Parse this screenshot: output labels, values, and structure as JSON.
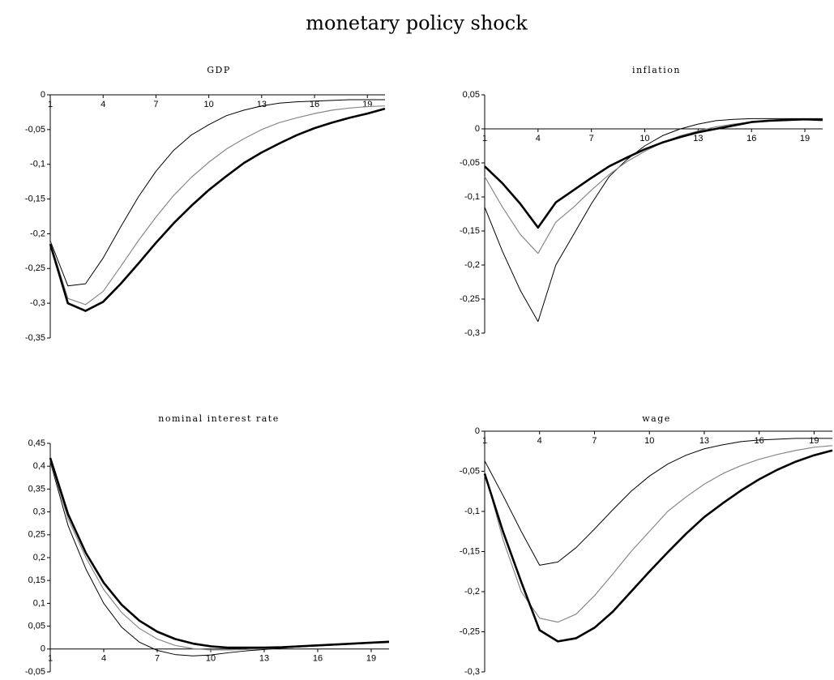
{
  "title": "monetary policy shock",
  "chart_data": [
    {
      "type": "line",
      "title": "GDP",
      "x": [
        1,
        2,
        3,
        4,
        5,
        6,
        7,
        8,
        9,
        10,
        11,
        12,
        13,
        14,
        15,
        16,
        17,
        18,
        19,
        20
      ],
      "xlim": [
        1,
        20
      ],
      "xticks": [
        1,
        4,
        7,
        10,
        13,
        16,
        19
      ],
      "ylim": [
        -0.35,
        0
      ],
      "yticks": [
        0,
        {
          "value": -0.05,
          "label": "-0,05"
        },
        {
          "value": -0.1,
          "label": "-0,1"
        },
        {
          "value": -0.15,
          "label": "-0,15"
        },
        {
          "value": -0.2,
          "label": "-0,2"
        },
        {
          "value": -0.25,
          "label": "-0,25"
        },
        {
          "value": -0.3,
          "label": "-0,3"
        },
        {
          "value": -0.35,
          "label": "-0,35"
        }
      ],
      "series": [
        {
          "color": "#000000",
          "line_width": 1,
          "values": [
            -0.21,
            -0.275,
            -0.272,
            -0.235,
            -0.19,
            -0.147,
            -0.11,
            -0.08,
            -0.058,
            -0.043,
            -0.03,
            -0.022,
            -0.016,
            -0.012,
            -0.01,
            -0.009,
            -0.008,
            -0.007,
            -0.007,
            -0.007
          ]
        },
        {
          "color": "#888888",
          "line_width": 1.2,
          "values": [
            -0.212,
            -0.293,
            -0.302,
            -0.283,
            -0.247,
            -0.21,
            -0.176,
            -0.145,
            -0.119,
            -0.097,
            -0.078,
            -0.063,
            -0.05,
            -0.04,
            -0.033,
            -0.027,
            -0.022,
            -0.019,
            -0.017,
            -0.016
          ]
        },
        {
          "color": "#000000",
          "line_width": 2.6,
          "values": [
            -0.215,
            -0.3,
            -0.311,
            -0.298,
            -0.272,
            -0.243,
            -0.213,
            -0.185,
            -0.16,
            -0.137,
            -0.117,
            -0.098,
            -0.083,
            -0.07,
            -0.058,
            -0.048,
            -0.04,
            -0.033,
            -0.027,
            -0.02
          ]
        }
      ]
    },
    {
      "type": "line",
      "title": "inflation",
      "x": [
        1,
        2,
        3,
        4,
        5,
        6,
        7,
        8,
        9,
        10,
        11,
        12,
        13,
        14,
        15,
        16,
        17,
        18,
        19,
        20
      ],
      "xlim": [
        1,
        20
      ],
      "xticks": [
        1,
        4,
        7,
        10,
        13,
        16,
        19
      ],
      "ylim": [
        -0.3,
        0.05
      ],
      "yticks": [
        {
          "value": 0.05,
          "label": "0,05"
        },
        0,
        {
          "value": -0.05,
          "label": "-0,05"
        },
        {
          "value": -0.1,
          "label": "-0,1"
        },
        {
          "value": -0.15,
          "label": "-0,15"
        },
        {
          "value": -0.2,
          "label": "-0,2"
        },
        {
          "value": -0.25,
          "label": "-0,25"
        },
        {
          "value": -0.3,
          "label": "-0,3"
        }
      ],
      "series": [
        {
          "color": "#000000",
          "line_width": 1,
          "values": [
            -0.115,
            -0.18,
            -0.237,
            -0.283,
            -0.2,
            -0.155,
            -0.11,
            -0.07,
            -0.045,
            -0.025,
            -0.01,
            0,
            0.007,
            0.012,
            0.014,
            0.015,
            0.015,
            0.015,
            0.015,
            0.015
          ]
        },
        {
          "color": "#888888",
          "line_width": 1.2,
          "values": [
            -0.07,
            -0.115,
            -0.155,
            -0.183,
            -0.137,
            -0.115,
            -0.09,
            -0.067,
            -0.048,
            -0.033,
            -0.02,
            -0.01,
            -0.003,
            0.003,
            0.007,
            0.01,
            0.012,
            0.013,
            0.014,
            0.014
          ]
        },
        {
          "color": "#000000",
          "line_width": 2.6,
          "values": [
            -0.055,
            -0.08,
            -0.11,
            -0.145,
            -0.108,
            -0.09,
            -0.072,
            -0.055,
            -0.042,
            -0.03,
            -0.02,
            -0.012,
            -0.005,
            0,
            0.005,
            0.01,
            0.012,
            0.013,
            0.014,
            0.013
          ]
        }
      ]
    },
    {
      "type": "line",
      "title": "nominal interest rate",
      "x": [
        1,
        2,
        3,
        4,
        5,
        6,
        7,
        8,
        9,
        10,
        11,
        12,
        13,
        14,
        15,
        16,
        17,
        18,
        19,
        20
      ],
      "xlim": [
        1,
        20
      ],
      "xticks": [
        1,
        4,
        7,
        10,
        13,
        16,
        19
      ],
      "ylim": [
        -0.05,
        0.45
      ],
      "yticks": [
        {
          "value": 0.45,
          "label": "0,45"
        },
        {
          "value": 0.4,
          "label": "0,4"
        },
        {
          "value": 0.35,
          "label": "0,35"
        },
        {
          "value": 0.3,
          "label": "0,3"
        },
        {
          "value": 0.25,
          "label": "0,25"
        },
        {
          "value": 0.2,
          "label": "0,2"
        },
        {
          "value": 0.15,
          "label": "0,15"
        },
        {
          "value": 0.1,
          "label": "0,1"
        },
        {
          "value": 0.05,
          "label": "0,05"
        },
        0,
        {
          "value": -0.05,
          "label": "-0,05"
        }
      ],
      "series": [
        {
          "color": "#000000",
          "line_width": 1,
          "values": [
            0.41,
            0.27,
            0.175,
            0.1,
            0.048,
            0.015,
            -0.003,
            -0.012,
            -0.015,
            -0.013,
            -0.008,
            -0.004,
            -0.001,
            0.002,
            0.005,
            0.007,
            0.009,
            0.011,
            0.013,
            0.015
          ]
        },
        {
          "color": "#888888",
          "line_width": 1.2,
          "values": [
            0.413,
            0.285,
            0.2,
            0.13,
            0.08,
            0.045,
            0.022,
            0.008,
            0.001,
            -0.002,
            -0.002,
            -0.001,
            0.001,
            0.003,
            0.005,
            0.007,
            0.009,
            0.011,
            0.013,
            0.014
          ]
        },
        {
          "color": "#000000",
          "line_width": 2.6,
          "values": [
            0.418,
            0.295,
            0.21,
            0.145,
            0.097,
            0.062,
            0.038,
            0.022,
            0.012,
            0.006,
            0.003,
            0.003,
            0.003,
            0.004,
            0.006,
            0.008,
            0.01,
            0.012,
            0.014,
            0.016
          ]
        }
      ]
    },
    {
      "type": "line",
      "title": "wage",
      "x": [
        1,
        2,
        3,
        4,
        5,
        6,
        7,
        8,
        9,
        10,
        11,
        12,
        13,
        14,
        15,
        16,
        17,
        18,
        19,
        20
      ],
      "xlim": [
        1,
        20
      ],
      "xticks": [
        1,
        4,
        7,
        10,
        13,
        16,
        19
      ],
      "ylim": [
        -0.3,
        0
      ],
      "yticks": [
        0,
        {
          "value": -0.05,
          "label": "-0,05"
        },
        {
          "value": -0.1,
          "label": "-0,1"
        },
        {
          "value": -0.15,
          "label": "-0,15"
        },
        {
          "value": -0.2,
          "label": "-0,2"
        },
        {
          "value": -0.25,
          "label": "-0,25"
        },
        {
          "value": -0.3,
          "label": "-0,3"
        }
      ],
      "series": [
        {
          "color": "#000000",
          "line_width": 1,
          "values": [
            -0.037,
            -0.08,
            -0.125,
            -0.167,
            -0.163,
            -0.145,
            -0.122,
            -0.098,
            -0.075,
            -0.056,
            -0.041,
            -0.03,
            -0.022,
            -0.017,
            -0.013,
            -0.011,
            -0.01,
            -0.009,
            -0.009,
            -0.009
          ]
        },
        {
          "color": "#888888",
          "line_width": 1.2,
          "values": [
            -0.05,
            -0.135,
            -0.2,
            -0.233,
            -0.238,
            -0.228,
            -0.205,
            -0.178,
            -0.15,
            -0.125,
            -0.1,
            -0.082,
            -0.066,
            -0.053,
            -0.043,
            -0.035,
            -0.029,
            -0.024,
            -0.02,
            -0.018
          ]
        },
        {
          "color": "#000000",
          "line_width": 2.6,
          "values": [
            -0.053,
            -0.125,
            -0.188,
            -0.248,
            -0.262,
            -0.258,
            -0.245,
            -0.225,
            -0.2,
            -0.175,
            -0.151,
            -0.128,
            -0.107,
            -0.09,
            -0.074,
            -0.06,
            -0.048,
            -0.038,
            -0.03,
            -0.024
          ]
        }
      ]
    }
  ]
}
